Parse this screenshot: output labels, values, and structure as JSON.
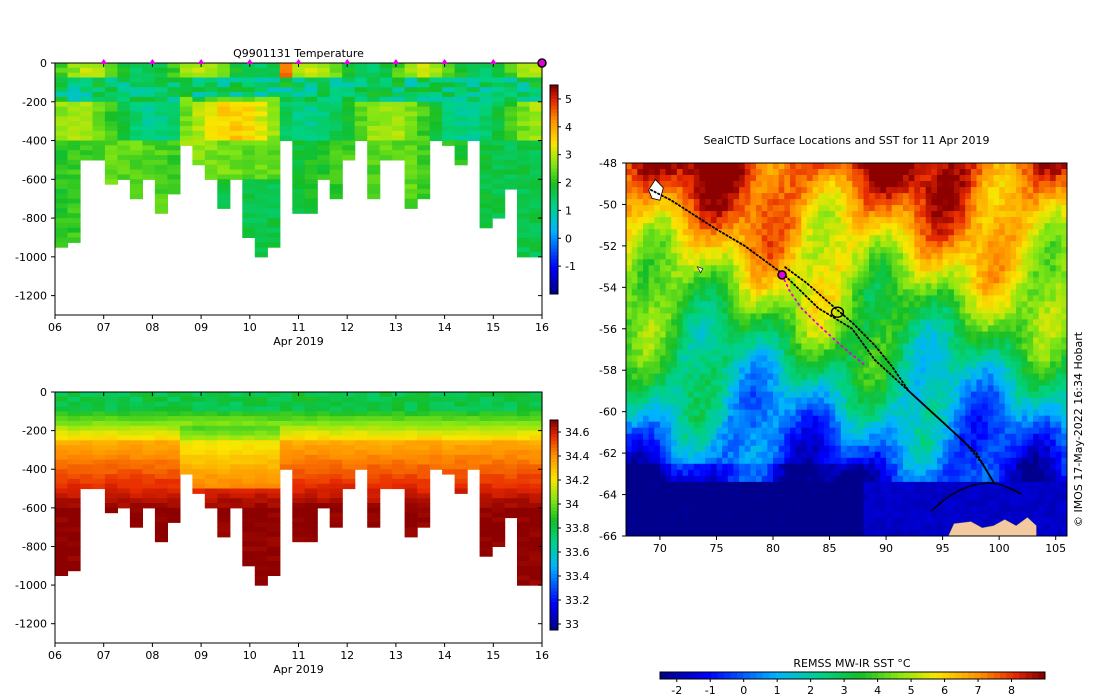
{
  "chart_data": [
    {
      "type": "heatmap",
      "title": "Q9901131  Temperature",
      "xlabel": "Apr 2019",
      "ylabel": "",
      "x_ticks": [
        "06",
        "07",
        "08",
        "09",
        "10",
        "11",
        "12",
        "13",
        "14",
        "15",
        "16"
      ],
      "y_ticks": [
        "0",
        "-200",
        "-400",
        "-600",
        "-800",
        "-1000",
        "-1200"
      ],
      "xlim_days": [
        6,
        16
      ],
      "ylim": [
        -1300,
        0
      ],
      "colorbar_ticks": [
        "5",
        "4",
        "3",
        "2",
        "1",
        "0",
        "-1"
      ],
      "colorbar_range": [
        -2,
        5.5
      ],
      "profile_max_depths": [
        940,
        920,
        500,
        500,
        610,
        590,
        700,
        600,
        760,
        670,
        410,
        520,
        580,
        740,
        600,
        880,
        1000,
        950,
        400,
        770,
        770,
        600,
        690,
        500,
        380,
        700,
        500,
        500,
        740,
        690,
        400,
        420,
        510,
        400,
        840,
        800,
        650,
        1000,
        1000
      ],
      "marker_days": [
        7,
        8,
        9,
        10,
        11,
        12,
        13,
        14,
        15,
        16
      ]
    },
    {
      "type": "heatmap",
      "title": "",
      "xlabel": "Apr 2019",
      "x_ticks": [
        "06",
        "07",
        "08",
        "09",
        "10",
        "11",
        "12",
        "13",
        "14",
        "15",
        "16"
      ],
      "y_ticks": [
        "0",
        "-200",
        "-400",
        "-600",
        "-800",
        "-1000",
        "-1200"
      ],
      "xlim_days": [
        6,
        16
      ],
      "ylim": [
        -1300,
        0
      ],
      "colorbar_ticks": [
        "34.6",
        "34.4",
        "34.2",
        "34",
        "33.8",
        "33.6",
        "33.4",
        "33.2",
        "33"
      ],
      "colorbar_range": [
        32.95,
        34.7
      ],
      "profile_max_depths": [
        940,
        920,
        500,
        500,
        610,
        590,
        700,
        600,
        760,
        670,
        410,
        520,
        580,
        740,
        600,
        880,
        1000,
        950,
        400,
        770,
        770,
        600,
        690,
        500,
        380,
        700,
        500,
        500,
        740,
        690,
        400,
        420,
        510,
        400,
        840,
        800,
        650,
        1000,
        1000
      ]
    },
    {
      "type": "map",
      "title": "SealCTD Surface Locations and SST for 11 Apr 2019",
      "x_ticks": [
        "70",
        "75",
        "80",
        "85",
        "90",
        "95",
        "100",
        "105"
      ],
      "xlim": [
        67,
        106
      ],
      "y_ticks": [
        "-48",
        "-50",
        "-52",
        "-54",
        "-56",
        "-58",
        "-60",
        "-62",
        "-64",
        "-66"
      ],
      "ylim": [
        -66,
        -48
      ],
      "credit": "© IMOS 17-May-2022 16:34 Hobart",
      "colorbar_label": "REMSS MW-IR SST °C",
      "colorbar_ticks": [
        "-2",
        "-1",
        "0",
        "1",
        "2",
        "3",
        "4",
        "5",
        "6",
        "7",
        "8"
      ],
      "colorbar_range": [
        -2.5,
        9
      ],
      "track_current_start": [
        80.8,
        -53.4
      ],
      "track_points": [
        [
          69.2,
          -49.3
        ],
        [
          71,
          -49.8
        ],
        [
          73,
          -50.5
        ],
        [
          75,
          -51.2
        ],
        [
          77.5,
          -52
        ],
        [
          79.5,
          -52.8
        ],
        [
          81,
          -53.4
        ],
        [
          82.5,
          -54.2
        ],
        [
          84,
          -55
        ],
        [
          85.5,
          -55.5
        ],
        [
          87,
          -56
        ],
        [
          89,
          -57.5
        ],
        [
          91,
          -58.5
        ],
        [
          93,
          -59.5
        ],
        [
          95,
          -60.5
        ],
        [
          97,
          -61.5
        ],
        [
          98.5,
          -62.5
        ],
        [
          99.5,
          -63.4
        ]
      ],
      "track_return": [
        [
          99.5,
          -63.4
        ],
        [
          98,
          -62
        ],
        [
          96,
          -61
        ],
        [
          94,
          -60
        ],
        [
          92,
          -59
        ],
        [
          90.5,
          -57.8
        ],
        [
          89,
          -56.8
        ],
        [
          87,
          -55.7
        ],
        [
          85.5,
          -55
        ],
        [
          83,
          -53.8
        ],
        [
          81,
          -53
        ]
      ],
      "magenta_track": [
        [
          80.8,
          -53.4
        ],
        [
          81.5,
          -54.2
        ],
        [
          82.5,
          -55
        ],
        [
          84,
          -55.8
        ],
        [
          86,
          -56.8
        ],
        [
          88,
          -57.7
        ]
      ]
    }
  ]
}
